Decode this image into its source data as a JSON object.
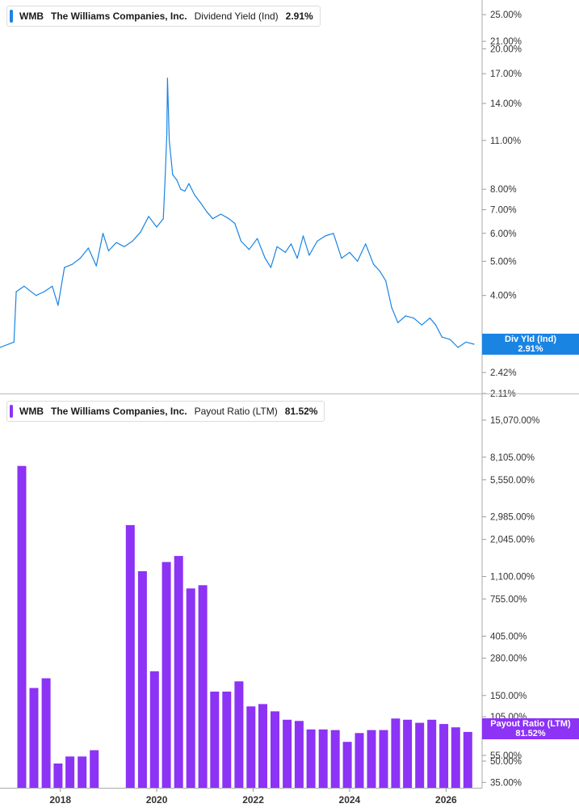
{
  "colors": {
    "yield": "#1a84e3",
    "payout": "#8c33f5"
  },
  "top_legend": {
    "ticker": "WMB",
    "company": "The Williams Companies, Inc.",
    "metric": "Dividend Yield (Ind)",
    "value": "2.91%"
  },
  "bottom_legend": {
    "ticker": "WMB",
    "company": "The Williams Companies, Inc.",
    "metric": "Payout Ratio (LTM)",
    "value": "81.52%"
  },
  "yield_tag": {
    "label": "Div Yld (Ind)",
    "value": "2.91%"
  },
  "payout_tag": {
    "label": "Payout Ratio (LTM)",
    "value": "81.52%"
  },
  "chart_data": [
    {
      "type": "line",
      "scale": "log",
      "series": [
        {
          "name": "Dividend Yield (Ind)",
          "color": "#1a84e3",
          "x": [
            "2016-06-01",
            "2016-10-01",
            "2017-01-15",
            "2017-02-01",
            "2017-04-01",
            "2017-07-01",
            "2017-09-01",
            "2017-11-01",
            "2017-12-15",
            "2018-02-01",
            "2018-04-01",
            "2018-06-01",
            "2018-08-01",
            "2018-10-01",
            "2018-11-20",
            "2019-01-01",
            "2019-03-01",
            "2019-05-01",
            "2019-07-01",
            "2019-09-01",
            "2019-11-01",
            "2020-01-01",
            "2020-02-20",
            "2020-03-05",
            "2020-03-18",
            "2020-03-23",
            "2020-04-05",
            "2020-05-01",
            "2020-06-01",
            "2020-07-01",
            "2020-08-01",
            "2020-09-01",
            "2020-10-15",
            "2020-12-01",
            "2021-01-15",
            "2021-03-01",
            "2021-05-01",
            "2021-07-01",
            "2021-08-15",
            "2021-10-01",
            "2021-12-01",
            "2022-02-01",
            "2022-04-01",
            "2022-05-15",
            "2022-07-01",
            "2022-09-01",
            "2022-10-15",
            "2022-12-01",
            "2023-01-15",
            "2023-03-01",
            "2023-05-01",
            "2023-07-01",
            "2023-09-01",
            "2023-11-01",
            "2024-01-01",
            "2024-03-01",
            "2024-05-01",
            "2024-07-01",
            "2024-08-15",
            "2024-10-01",
            "2024-11-15",
            "2025-01-01",
            "2025-03-01",
            "2025-05-01",
            "2025-07-01",
            "2025-09-01",
            "2025-10-15",
            "2025-12-01",
            "2026-02-01",
            "2026-04-01",
            "2026-06-01",
            "2026-08-01"
          ],
          "values": [
            2.9,
            2.85,
            2.95,
            4.1,
            4.25,
            4.0,
            4.1,
            4.25,
            3.75,
            4.8,
            4.9,
            5.1,
            5.45,
            4.85,
            6.0,
            5.35,
            5.65,
            5.5,
            5.7,
            6.05,
            6.7,
            6.25,
            6.6,
            8.6,
            11.5,
            16.5,
            11.0,
            8.8,
            8.5,
            8.0,
            7.9,
            8.3,
            7.7,
            7.3,
            6.9,
            6.6,
            6.8,
            6.6,
            6.4,
            5.7,
            5.4,
            5.8,
            5.1,
            4.8,
            5.5,
            5.3,
            5.6,
            5.1,
            5.9,
            5.2,
            5.7,
            5.9,
            6.0,
            5.1,
            5.3,
            5.0,
            5.6,
            4.9,
            4.7,
            4.4,
            3.7,
            3.35,
            3.5,
            3.45,
            3.3,
            3.45,
            3.3,
            3.05,
            3.0,
            2.85,
            2.95,
            2.91
          ]
        }
      ],
      "y_ticks": [
        "25.00%",
        "21.00%",
        "20.00%",
        "17.00%",
        "14.00%",
        "11.00%",
        "8.00%",
        "7.00%",
        "6.00%",
        "5.00%",
        "4.00%",
        "2.42%",
        "2.11%"
      ],
      "y_tick_values": [
        25,
        21,
        20,
        17,
        14,
        11,
        8,
        7,
        6,
        5,
        4,
        2.42,
        2.11
      ],
      "ylim": [
        2.11,
        27.5
      ]
    },
    {
      "type": "bar",
      "scale": "log",
      "series": [
        {
          "name": "Payout Ratio (LTM)",
          "color": "#8c33f5",
          "x": [
            "2017-03-15",
            "2017-06-15",
            "2017-09-15",
            "2017-12-15",
            "2018-03-15",
            "2018-06-15",
            "2018-09-15",
            "2019-06-15",
            "2019-09-15",
            "2019-12-15",
            "2020-03-15",
            "2020-06-15",
            "2020-09-15",
            "2020-12-15",
            "2021-03-15",
            "2021-06-15",
            "2021-09-15",
            "2021-12-15",
            "2022-03-15",
            "2022-06-15",
            "2022-09-15",
            "2022-12-15",
            "2023-03-15",
            "2023-06-15",
            "2023-09-15",
            "2023-12-15",
            "2024-03-15",
            "2024-06-15",
            "2024-09-15",
            "2024-12-15",
            "2025-03-15",
            "2025-06-15",
            "2025-09-15",
            "2025-12-15",
            "2026-03-15",
            "2026-06-15"
          ],
          "values": [
            7000,
            170,
            200,
            48,
            54,
            54,
            60,
            2600,
            1200,
            225,
            1400,
            1550,
            900,
            950,
            160,
            160,
            190,
            125,
            130,
            115,
            100,
            98,
            85,
            85,
            84,
            69,
            80,
            84,
            84,
            102,
            100,
            95,
            100,
            93,
            88,
            81.52
          ]
        }
      ],
      "y_ticks": [
        "15,070.00%",
        "8,105.00%",
        "5,550.00%",
        "2,985.00%",
        "2,045.00%",
        "1,100.00%",
        "755.00%",
        "405.00%",
        "280.00%",
        "150.00%",
        "105.00%",
        "55.00%",
        "50.00%",
        "35.00%"
      ],
      "y_tick_values": [
        15070,
        8105,
        5550,
        2985,
        2045,
        1100,
        755,
        405,
        280,
        150,
        105,
        55,
        50,
        35
      ],
      "ylim": [
        32,
        22000
      ]
    }
  ],
  "x_axis": {
    "labels": [
      "2018",
      "2020",
      "2022",
      "2024",
      "2026"
    ],
    "label_dates": [
      "2018-01-01",
      "2020-01-01",
      "2022-01-01",
      "2024-01-01",
      "2026-01-01"
    ],
    "range": [
      "2016-10-01",
      "2026-10-01"
    ]
  }
}
